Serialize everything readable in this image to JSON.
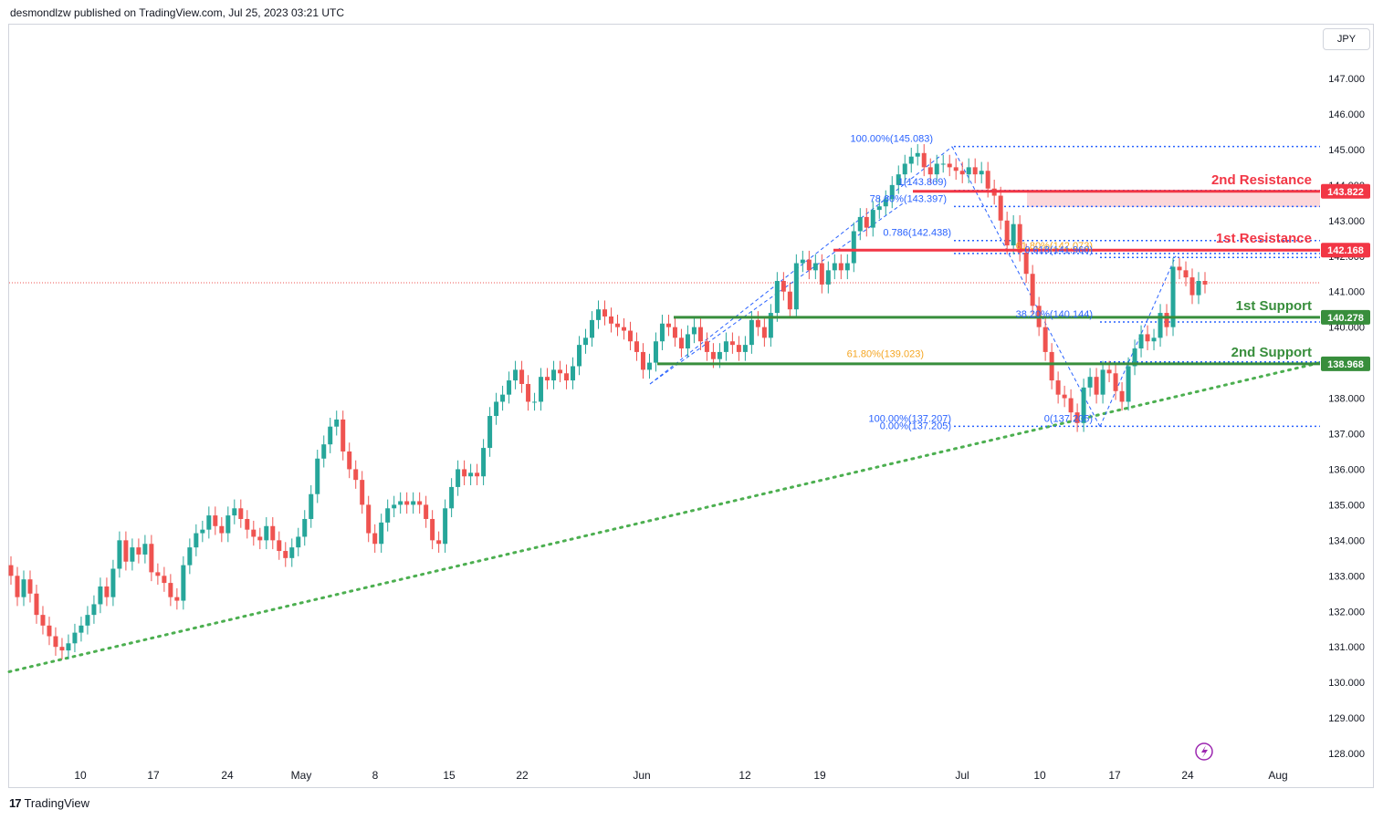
{
  "header": {
    "publisher_text": "desmondlzw published on TradingView.com, Jul 25, 2023 03:21 UTC"
  },
  "toolbar": {
    "currency_label": "JPY"
  },
  "footer": {
    "brand": "TradingView",
    "logo_glyph": "17"
  },
  "colors": {
    "up": "#26a69a",
    "down": "#ef5350",
    "resistance": "#f23645",
    "support": "#388e3c",
    "fib": "#2962ff",
    "fib_golden": "#f5a623",
    "trendline": "#4caf50"
  },
  "chart_data": {
    "type": "candlestick",
    "symbol_currency": "JPY",
    "y_ticks": [
      128,
      129,
      130,
      131,
      132,
      133,
      134,
      135,
      136,
      137,
      138,
      139,
      140,
      141,
      142,
      143,
      144,
      145,
      146,
      147
    ],
    "x_ticks": [
      "10",
      "17",
      "24",
      "May",
      "8",
      "15",
      "22",
      "Jun",
      "12",
      "19",
      "Jul",
      "10",
      "17",
      "24",
      "Aug"
    ],
    "levels": [
      {
        "label": "2nd Resistance",
        "value": 143.822,
        "value_text": "143.822",
        "kind": "resistance"
      },
      {
        "label": "1st Resistance",
        "value": 142.168,
        "value_text": "142.168",
        "kind": "resistance"
      },
      {
        "label": "1st Support",
        "value": 140.278,
        "value_text": "140.278",
        "kind": "support"
      },
      {
        "label": "2nd Support",
        "value": 138.968,
        "value_text": "138.968",
        "kind": "support"
      }
    ],
    "fib_labels": [
      {
        "text": "100.00%(145.083)",
        "value": 145.083,
        "color": "fib"
      },
      {
        "text": "1(143.869)",
        "value": 143.869,
        "color": "fib"
      },
      {
        "text": "78.60%(143.397)",
        "value": 143.397,
        "color": "fib"
      },
      {
        "text": "0.786(142.438)",
        "value": 142.438,
        "color": "fib"
      },
      {
        "text": "61.80%(142.073)",
        "value": 142.073,
        "color": "fib_golden"
      },
      {
        "text": "0.618(141.960)",
        "value": 141.96,
        "color": "fib"
      },
      {
        "text": "38.20%(140.144)",
        "value": 140.144,
        "color": "fib"
      },
      {
        "text": "61.80%(139.023)",
        "value": 139.023,
        "color": "fib_golden"
      },
      {
        "text": "0.00%(137.205)",
        "value": 137.205,
        "color": "fib"
      },
      {
        "text": "0(137.205)",
        "value": 137.205,
        "color": "fib"
      },
      {
        "text": "100.00%(137.207)",
        "value": 137.207,
        "color": "fib"
      }
    ],
    "current_price": 141.25,
    "trendline": {
      "from": 130.3,
      "to": 139.0
    },
    "series": [
      {
        "c": 133.0
      },
      {
        "c": 132.4
      },
      {
        "c": 132.9
      },
      {
        "c": 132.5
      },
      {
        "c": 131.9
      },
      {
        "c": 131.6
      },
      {
        "c": 131.3
      },
      {
        "c": 131.0
      },
      {
        "c": 130.9
      },
      {
        "c": 131.1
      },
      {
        "c": 131.4
      },
      {
        "c": 131.6
      },
      {
        "c": 131.9
      },
      {
        "c": 132.2
      },
      {
        "c": 132.7
      },
      {
        "c": 132.4
      },
      {
        "c": 133.2
      },
      {
        "c": 134.0
      },
      {
        "c": 133.4
      },
      {
        "c": 133.8
      },
      {
        "c": 133.6
      },
      {
        "c": 133.9
      },
      {
        "c": 133.1
      },
      {
        "c": 133.0
      },
      {
        "c": 132.8
      },
      {
        "c": 132.4
      },
      {
        "c": 132.3
      },
      {
        "c": 133.3
      },
      {
        "c": 133.8
      },
      {
        "c": 134.2
      },
      {
        "c": 134.3
      },
      {
        "c": 134.7
      },
      {
        "c": 134.4
      },
      {
        "c": 134.2
      },
      {
        "c": 134.7
      },
      {
        "c": 134.9
      },
      {
        "c": 134.6
      },
      {
        "c": 134.3
      },
      {
        "c": 134.1
      },
      {
        "c": 134.0
      },
      {
        "c": 134.4
      },
      {
        "c": 134.0
      },
      {
        "c": 133.7
      },
      {
        "c": 133.5
      },
      {
        "c": 133.8
      },
      {
        "c": 134.1
      },
      {
        "c": 134.6
      },
      {
        "c": 135.3
      },
      {
        "c": 136.3
      },
      {
        "c": 136.7
      },
      {
        "c": 137.2
      },
      {
        "c": 137.4
      },
      {
        "c": 136.5
      },
      {
        "c": 136.0
      },
      {
        "c": 135.7
      },
      {
        "c": 135.0
      },
      {
        "c": 134.2
      },
      {
        "c": 133.9
      },
      {
        "c": 134.5
      },
      {
        "c": 134.9
      },
      {
        "c": 135.0
      },
      {
        "c": 135.1
      },
      {
        "c": 135.0
      },
      {
        "c": 135.1
      },
      {
        "c": 135.0
      },
      {
        "c": 134.6
      },
      {
        "c": 134.0
      },
      {
        "c": 133.9
      },
      {
        "c": 134.9
      },
      {
        "c": 135.5
      },
      {
        "c": 136.0
      },
      {
        "c": 135.8
      },
      {
        "c": 135.9
      },
      {
        "c": 135.8
      },
      {
        "c": 136.6
      },
      {
        "c": 137.5
      },
      {
        "c": 137.9
      },
      {
        "c": 138.1
      },
      {
        "c": 138.5
      },
      {
        "c": 138.8
      },
      {
        "c": 138.4
      },
      {
        "c": 137.9
      },
      {
        "c": 137.9
      },
      {
        "c": 138.6
      },
      {
        "c": 138.5
      },
      {
        "c": 138.8
      },
      {
        "c": 138.7
      },
      {
        "c": 138.5
      },
      {
        "c": 138.9
      },
      {
        "c": 139.5
      },
      {
        "c": 139.7
      },
      {
        "c": 140.2
      },
      {
        "c": 140.5
      },
      {
        "c": 140.3
      },
      {
        "c": 140.1
      },
      {
        "c": 140.0
      },
      {
        "c": 139.9
      },
      {
        "c": 139.6
      },
      {
        "c": 139.3
      },
      {
        "c": 138.8
      },
      {
        "c": 139.0
      },
      {
        "c": 139.6
      },
      {
        "c": 140.1
      },
      {
        "c": 140.0
      },
      {
        "c": 139.7
      },
      {
        "c": 139.4
      },
      {
        "c": 139.8
      },
      {
        "c": 140.0
      },
      {
        "c": 139.6
      },
      {
        "c": 139.3
      },
      {
        "c": 139.1
      },
      {
        "c": 139.3
      },
      {
        "c": 139.6
      },
      {
        "c": 139.5
      },
      {
        "c": 139.3
      },
      {
        "c": 139.5
      },
      {
        "c": 140.2
      },
      {
        "c": 140.0
      },
      {
        "c": 139.7
      },
      {
        "c": 140.4
      },
      {
        "c": 141.3
      },
      {
        "c": 141.0
      },
      {
        "c": 140.5
      },
      {
        "c": 141.8
      },
      {
        "c": 141.9
      },
      {
        "c": 141.6
      },
      {
        "c": 141.8
      },
      {
        "c": 141.2
      },
      {
        "c": 141.6
      },
      {
        "c": 141.8
      },
      {
        "c": 141.6
      },
      {
        "c": 141.8
      },
      {
        "c": 142.7
      },
      {
        "c": 143.1
      },
      {
        "c": 142.8
      },
      {
        "c": 143.3
      },
      {
        "c": 143.4
      },
      {
        "c": 143.6
      },
      {
        "c": 144.0
      },
      {
        "c": 144.3
      },
      {
        "c": 144.6
      },
      {
        "c": 144.8
      },
      {
        "c": 144.9
      },
      {
        "c": 144.5
      },
      {
        "c": 144.3
      },
      {
        "c": 144.6
      },
      {
        "c": 144.6
      },
      {
        "c": 144.5
      },
      {
        "c": 144.4
      },
      {
        "c": 144.3
      },
      {
        "c": 144.5
      },
      {
        "c": 144.3
      },
      {
        "c": 144.4
      },
      {
        "c": 143.9
      },
      {
        "c": 143.7
      },
      {
        "c": 143.0
      },
      {
        "c": 142.3
      },
      {
        "c": 142.9
      },
      {
        "c": 142.1
      },
      {
        "c": 141.5
      },
      {
        "c": 140.6
      },
      {
        "c": 140.0
      },
      {
        "c": 139.3
      },
      {
        "c": 138.5
      },
      {
        "c": 138.1
      },
      {
        "c": 138.0
      },
      {
        "c": 137.6
      },
      {
        "c": 137.3
      },
      {
        "c": 138.3
      },
      {
        "c": 138.6
      },
      {
        "c": 138.1
      },
      {
        "c": 138.8
      },
      {
        "c": 138.7
      },
      {
        "c": 138.2
      },
      {
        "c": 137.9
      },
      {
        "c": 138.9
      },
      {
        "c": 139.4
      },
      {
        "c": 139.8
      },
      {
        "c": 139.6
      },
      {
        "c": 139.7
      },
      {
        "c": 140.4
      },
      {
        "c": 140.0
      },
      {
        "c": 141.7
      },
      {
        "c": 141.6
      },
      {
        "c": 141.4
      },
      {
        "c": 140.9
      },
      {
        "c": 141.3
      },
      {
        "c": 141.2
      }
    ]
  }
}
